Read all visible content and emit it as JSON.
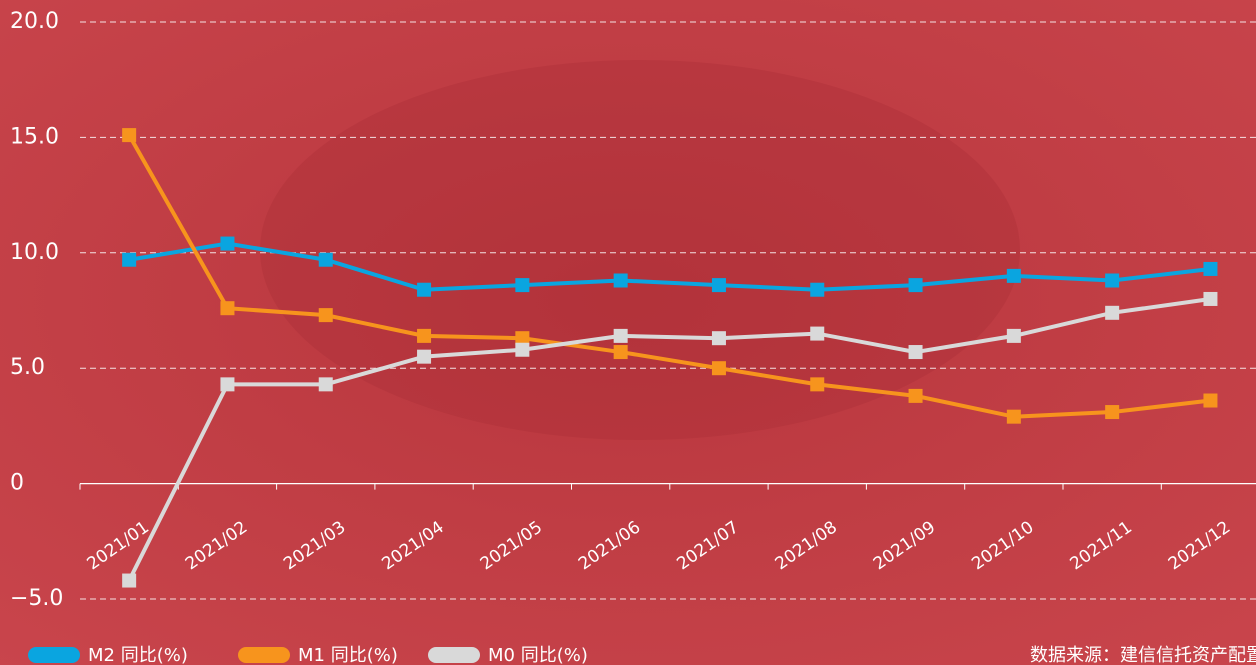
{
  "chart_data": {
    "type": "line",
    "categories": [
      "2021/01",
      "2021/02",
      "2021/03",
      "2021/04",
      "2021/05",
      "2021/06",
      "2021/07",
      "2021/08",
      "2021/09",
      "2021/10",
      "2021/11",
      "2021/12"
    ],
    "series": [
      {
        "name": "M2 同比(%)",
        "color": "#0aa5e0",
        "values": [
          9.7,
          10.4,
          9.7,
          8.4,
          8.6,
          8.8,
          8.6,
          8.4,
          8.6,
          9.0,
          8.8,
          9.3
        ]
      },
      {
        "name": "M1 同比(%)",
        "color": "#f7941d",
        "values": [
          15.1,
          7.6,
          7.3,
          6.4,
          6.3,
          5.7,
          5.0,
          4.3,
          3.8,
          2.9,
          3.1,
          3.6
        ]
      },
      {
        "name": "M0 同比(%)",
        "color": "#d9d9d9",
        "values": [
          -4.2,
          4.3,
          4.3,
          5.5,
          5.8,
          6.4,
          6.3,
          6.5,
          5.7,
          6.4,
          7.4,
          8.0
        ]
      }
    ],
    "ylim": [
      -5,
      20
    ],
    "yticks": [
      {
        "value": -5,
        "label": "−5.0"
      },
      0,
      {
        "value": 5,
        "label": "5.0"
      },
      {
        "value": 10,
        "label": "10.0"
      },
      {
        "value": 15,
        "label": "15.0"
      },
      {
        "value": 20,
        "label": "20.0"
      }
    ],
    "grid": true,
    "source": "数据来源：建信信托资产配置"
  }
}
